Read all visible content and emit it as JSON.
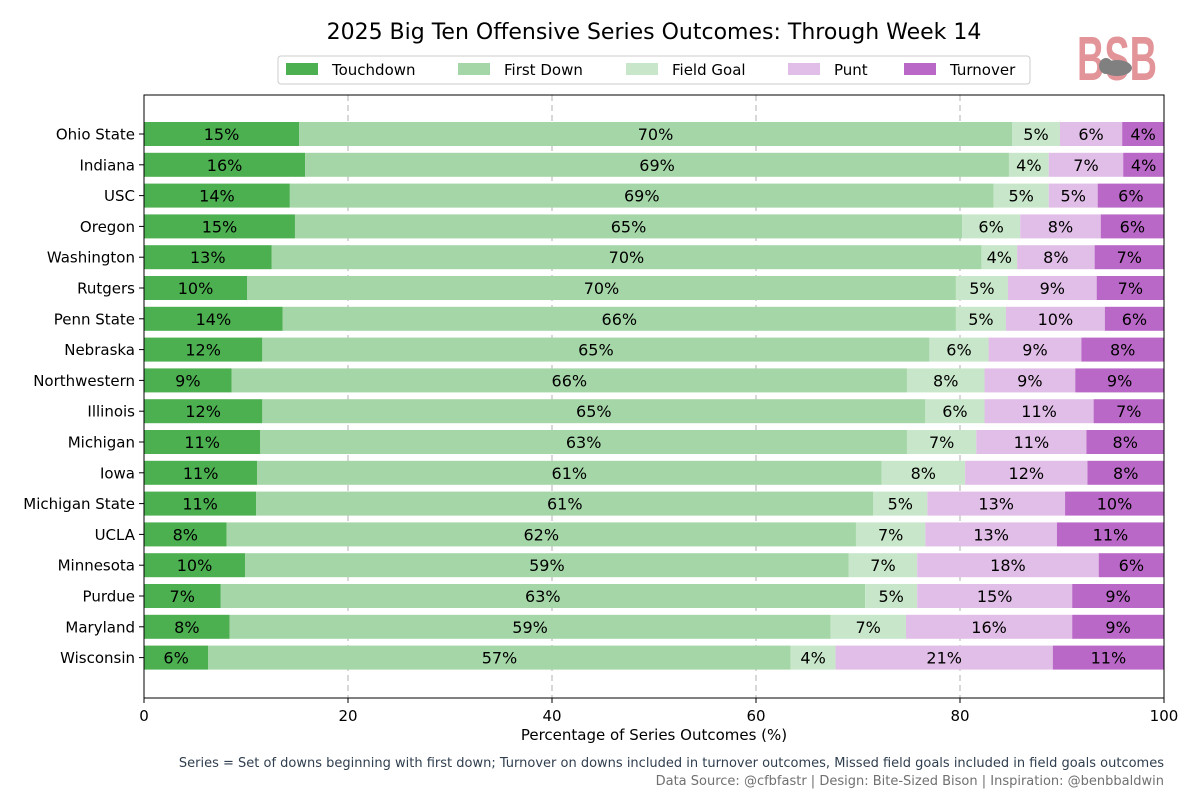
{
  "chart_data": {
    "type": "bar",
    "orientation": "horizontal-stacked",
    "title": "2025 Big Ten Offensive Series Outcomes: Through Week 14",
    "xlabel": "Percentage of Series Outcomes (%)",
    "ylabel": "",
    "xlim": [
      0,
      100
    ],
    "xticks": [
      0,
      20,
      40,
      60,
      80,
      100
    ],
    "grid": "vertical dashed",
    "legend_position": "top-center",
    "categories": [
      "Ohio State",
      "Indiana",
      "USC",
      "Oregon",
      "Washington",
      "Rutgers",
      "Penn State",
      "Nebraska",
      "Northwestern",
      "Illinois",
      "Michigan",
      "Iowa",
      "Michigan State",
      "UCLA",
      "Minnesota",
      "Purdue",
      "Maryland",
      "Wisconsin"
    ],
    "series": [
      {
        "name": "Touchdown",
        "color": "#4caf50",
        "values": [
          15.2,
          15.8,
          14.3,
          14.8,
          12.5,
          10.1,
          13.6,
          11.6,
          8.6,
          11.6,
          11.4,
          11.1,
          11.0,
          8.1,
          9.9,
          7.5,
          8.4,
          6.3
        ],
        "labels": [
          "15%",
          "16%",
          "14%",
          "15%",
          "13%",
          "10%",
          "14%",
          "12%",
          "9%",
          "12%",
          "11%",
          "11%",
          "11%",
          "8%",
          "10%",
          "7%",
          "8%",
          "6%"
        ]
      },
      {
        "name": "First Down",
        "color": "#a5d6a7",
        "values": [
          69.9,
          69.0,
          69.0,
          65.4,
          69.6,
          69.5,
          66.0,
          65.4,
          66.2,
          65.0,
          63.4,
          61.2,
          60.5,
          61.7,
          59.2,
          63.2,
          58.9,
          57.1
        ],
        "labels": [
          "70%",
          "69%",
          "69%",
          "65%",
          "70%",
          "70%",
          "66%",
          "65%",
          "66%",
          "65%",
          "63%",
          "61%",
          "61%",
          "62%",
          "59%",
          "63%",
          "59%",
          "57%"
        ]
      },
      {
        "name": "Field Goal",
        "color": "#c8e6c9",
        "values": [
          4.7,
          3.9,
          5.4,
          5.7,
          3.5,
          5.1,
          4.9,
          5.8,
          7.6,
          5.8,
          6.8,
          8.2,
          5.3,
          6.8,
          6.7,
          5.1,
          7.4,
          4.4
        ],
        "labels": [
          "5%",
          "4%",
          "5%",
          "6%",
          "4%",
          "5%",
          "5%",
          "6%",
          "8%",
          "6%",
          "7%",
          "8%",
          "5%",
          "7%",
          "7%",
          "5%",
          "7%",
          "4%"
        ]
      },
      {
        "name": "Punt",
        "color": "#e1bee7",
        "values": [
          6.1,
          7.3,
          4.8,
          7.9,
          7.6,
          8.7,
          9.7,
          9.1,
          8.9,
          10.7,
          10.8,
          12.0,
          13.5,
          12.9,
          17.8,
          15.2,
          16.3,
          21.3
        ],
        "labels": [
          "6%",
          "7%",
          "5%",
          "8%",
          "8%",
          "9%",
          "10%",
          "9%",
          "9%",
          "11%",
          "11%",
          "12%",
          "13%",
          "13%",
          "18%",
          "15%",
          "16%",
          "21%"
        ]
      },
      {
        "name": "Turnover",
        "color": "#ba68c8",
        "values": [
          4.1,
          4.0,
          6.5,
          6.2,
          6.8,
          6.6,
          5.8,
          8.1,
          8.7,
          6.9,
          7.6,
          7.5,
          9.7,
          10.5,
          6.4,
          9.0,
          9.0,
          10.9
        ],
        "labels": [
          "4%",
          "4%",
          "6%",
          "6%",
          "7%",
          "7%",
          "6%",
          "8%",
          "9%",
          "7%",
          "8%",
          "8%",
          "10%",
          "11%",
          "6%",
          "9%",
          "9%",
          "11%"
        ]
      }
    ]
  },
  "footer": {
    "note": "Series = Set of downs beginning with first down; Turnover on downs included in turnover outcomes, Missed field goals included in field goals outcomes",
    "credits": "Data Source: @cfbfastr | Design: Bite-Sized Bison | Inspiration: @benbbaldwin"
  },
  "logo": {
    "text": "BSB",
    "color": "#e39499"
  }
}
